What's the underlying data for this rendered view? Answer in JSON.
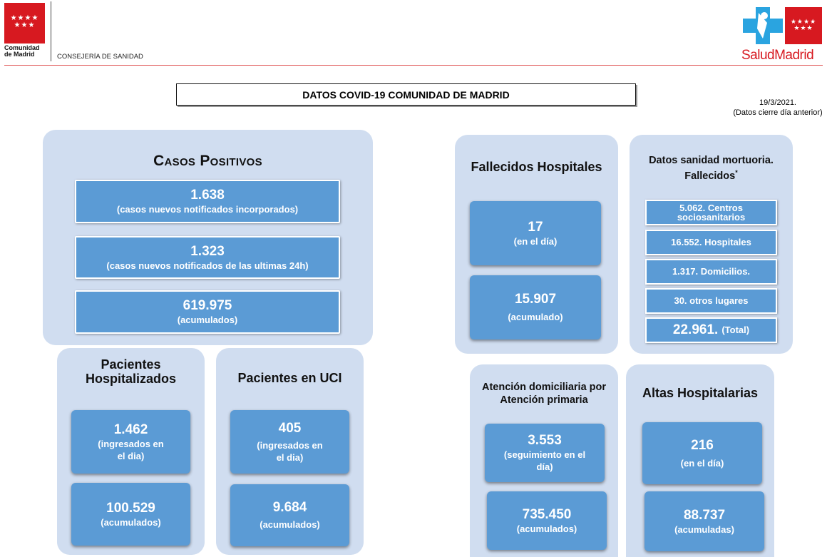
{
  "header": {
    "cm_logo_line1": "Comunidad",
    "cm_logo_line2": "de Madrid",
    "department": "CONSEJERÍA DE SANIDAD",
    "salud_madrid": "SaludMadrid",
    "report_title": "DATOS COVID-19 COMUNIDAD DE MADRID",
    "date": "19/3/2021.",
    "date_note": "(Datos cierre día anterior)"
  },
  "casos_positivos": {
    "title": "Casos Positivos",
    "nuevos_notificados": {
      "value": "1.638",
      "label": "(casos nuevos notificados incorporados)"
    },
    "ultimas_24h": {
      "value": "1.323",
      "label": "(casos nuevos notificados de las ultimas 24h)"
    },
    "acumulados": {
      "value": "619.975",
      "label": "(acumulados)"
    }
  },
  "hospitalizados": {
    "title_line1": "Pacientes",
    "title_line2": "Hospitalizados",
    "dia": {
      "value": "1.462",
      "label_line1": "(ingresados en",
      "label_line2": "el dia)"
    },
    "acumulados": {
      "value": "100.529",
      "label": "(acumulados)"
    }
  },
  "uci": {
    "title": "Pacientes en UCI",
    "dia": {
      "value": "405",
      "label_line1": "(ingresados en",
      "label_line2": "el dia)"
    },
    "acumulados": {
      "value": "9.684",
      "label": "(acumulados)"
    }
  },
  "fallecidos_hospitales": {
    "title": "Fallecidos Hospitales",
    "dia": {
      "value": "17",
      "label": "(en el día)"
    },
    "acumulado": {
      "value": "15.907",
      "label": "(acumulado)"
    }
  },
  "mortuoria": {
    "title_line1": "Datos sanidad mortuoria.",
    "title_line2": "Fallecidos",
    "asterisk": "*",
    "centros_line1": "5.062. Centros",
    "centros_line2": "sociosanitarios",
    "hospitales": "16.552. Hospitales",
    "domicilios": "1.317. Domicilios.",
    "otros": "30. otros lugares",
    "total_value": "22.961.",
    "total_label": "(Total)"
  },
  "atencion_domiciliaria": {
    "title_line1": "Atención domiciliaria por",
    "title_line2": "Atención primaria",
    "seguimiento": {
      "value": "3.553",
      "label_line1": "(seguimiento en el",
      "label_line2": "día)"
    },
    "acumulados": {
      "value": "735.450",
      "label": "(acumulados)"
    }
  },
  "altas": {
    "title": "Altas Hospitalarias",
    "dia": {
      "value": "216",
      "label": "(en el día)"
    },
    "acumuladas": {
      "value": "88.737",
      "label": "(acumuladas)"
    }
  }
}
